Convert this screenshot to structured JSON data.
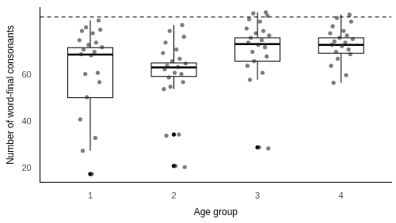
{
  "chart_data": {
    "type": "boxplot",
    "x_label": "Age group",
    "y_label": "Number of word-final consonants",
    "xlim": [
      0.4,
      4.6
    ],
    "xticks": [
      1,
      2,
      3,
      4
    ],
    "ylim": [
      14,
      89
    ],
    "yticks": [
      20,
      40,
      60
    ],
    "grid": false,
    "reference_line": 85,
    "groups": [
      {
        "x": 1,
        "whisker_low": 27.5,
        "q1": 50.3,
        "median": 68.8,
        "q3": 71.8,
        "whisker_high": 83.5,
        "outliers": [
          17.5
        ],
        "points": [
          [
            1.1,
            83.5
          ],
          [
            0.95,
            80.5
          ],
          [
            1.12,
            79.5
          ],
          [
            0.9,
            79
          ],
          [
            1.03,
            78
          ],
          [
            0.87,
            75
          ],
          [
            1.07,
            74
          ],
          [
            0.98,
            73
          ],
          [
            1.14,
            72
          ],
          [
            0.92,
            71
          ],
          [
            1.05,
            70
          ],
          [
            0.89,
            69
          ],
          [
            1.01,
            68.5
          ],
          [
            1.09,
            61
          ],
          [
            0.94,
            60.5
          ],
          [
            1.11,
            57
          ],
          [
            0.96,
            50.5
          ],
          [
            0.88,
            41
          ],
          [
            1.06,
            33
          ],
          [
            0.91,
            27.5
          ],
          [
            1.02,
            17.5
          ]
        ]
      },
      {
        "x": 2,
        "whisker_low": 54,
        "q1": 59.4,
        "median": 63.3,
        "q3": 65.2,
        "whisker_high": 81.5,
        "outliers": [
          34.5,
          21
        ],
        "points": [
          [
            2.1,
            81.5
          ],
          [
            1.95,
            79
          ],
          [
            2.12,
            76.5
          ],
          [
            1.9,
            74
          ],
          [
            2.03,
            71
          ],
          [
            1.87,
            69.5
          ],
          [
            2.07,
            67
          ],
          [
            1.98,
            66
          ],
          [
            2.14,
            65
          ],
          [
            1.92,
            64
          ],
          [
            2.05,
            63.5
          ],
          [
            1.89,
            62.5
          ],
          [
            2.01,
            61
          ],
          [
            2.09,
            60.5
          ],
          [
            1.94,
            59
          ],
          [
            2.11,
            57
          ],
          [
            1.96,
            55
          ],
          [
            1.88,
            54
          ],
          [
            2.06,
            34.5
          ],
          [
            1.91,
            34
          ],
          [
            2.02,
            21
          ],
          [
            2.13,
            20.5
          ]
        ]
      },
      {
        "x": 3,
        "whisker_low": 58,
        "q1": 66,
        "median": 73.3,
        "q3": 76,
        "whisker_high": 87,
        "outliers": [
          29
        ],
        "points": [
          [
            3.1,
            87
          ],
          [
            2.95,
            86.5
          ],
          [
            3.12,
            85.5
          ],
          [
            2.9,
            84
          ],
          [
            3.03,
            83
          ],
          [
            2.87,
            80
          ],
          [
            3.07,
            79
          ],
          [
            2.98,
            78
          ],
          [
            3.14,
            77
          ],
          [
            2.92,
            76
          ],
          [
            3.05,
            75
          ],
          [
            2.89,
            74
          ],
          [
            3.01,
            73
          ],
          [
            3.09,
            72
          ],
          [
            2.94,
            70
          ],
          [
            3.11,
            68
          ],
          [
            2.96,
            66
          ],
          [
            2.88,
            64
          ],
          [
            3.06,
            61
          ],
          [
            2.91,
            58
          ],
          [
            3.02,
            29
          ],
          [
            3.13,
            28.5
          ]
        ]
      },
      {
        "x": 4,
        "whisker_low": 56.7,
        "q1": 69.4,
        "median": 73,
        "q3": 76,
        "whisker_high": 86,
        "outliers": [],
        "points": [
          [
            4.1,
            86
          ],
          [
            3.95,
            84.5
          ],
          [
            4.12,
            83
          ],
          [
            3.9,
            81
          ],
          [
            4.03,
            79
          ],
          [
            3.87,
            78
          ],
          [
            4.07,
            77
          ],
          [
            3.98,
            76
          ],
          [
            4.14,
            75.5
          ],
          [
            3.92,
            74.5
          ],
          [
            4.05,
            74
          ],
          [
            3.89,
            73
          ],
          [
            4.01,
            72.5
          ],
          [
            4.09,
            71
          ],
          [
            3.94,
            70
          ],
          [
            4.11,
            69
          ],
          [
            3.96,
            67
          ],
          [
            3.88,
            64
          ],
          [
            4.06,
            60
          ],
          [
            3.91,
            56.7
          ]
        ]
      }
    ]
  }
}
